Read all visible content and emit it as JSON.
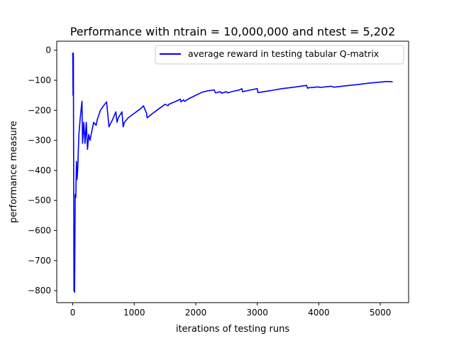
{
  "chart_data": {
    "type": "line",
    "title": "Performance with ntrain = 10,000,000 and ntest = 5,202",
    "xlabel": "iterations of testing runs",
    "ylabel": "performance measure",
    "xlim": [
      -260,
      5460
    ],
    "ylim": [
      -840,
      30
    ],
    "xticks": [
      0,
      1000,
      2000,
      3000,
      4000,
      5000
    ],
    "xtick_labels": [
      "0",
      "1000",
      "2000",
      "3000",
      "4000",
      "5000"
    ],
    "yticks": [
      0,
      -100,
      -200,
      -300,
      -400,
      -500,
      -600,
      -700,
      -800
    ],
    "ytick_labels": [
      "0",
      "−100",
      "−200",
      "−300",
      "−400",
      "−500",
      "−600",
      "−700",
      "−800"
    ],
    "grid": false,
    "legend_position": "top-right",
    "series": [
      {
        "name": "average reward in testing tabular Q-matrix",
        "color": "#0000ff",
        "x": [
          0,
          5,
          10,
          15,
          20,
          30,
          40,
          50,
          60,
          70,
          80,
          100,
          120,
          150,
          160,
          180,
          200,
          220,
          240,
          260,
          280,
          300,
          340,
          380,
          400,
          450,
          500,
          550,
          590,
          600,
          650,
          700,
          720,
          740,
          800,
          820,
          840,
          900,
          1000,
          1100,
          1150,
          1200,
          1210,
          1300,
          1400,
          1500,
          1550,
          1560,
          1700,
          1750,
          1760,
          1800,
          1820,
          1900,
          2000,
          2100,
          2200,
          2300,
          2320,
          2400,
          2420,
          2500,
          2520,
          2600,
          2700,
          2750,
          2760,
          2900,
          3000,
          3010,
          3200,
          3400,
          3600,
          3800,
          3820,
          3830,
          4000,
          4020,
          4100,
          4200,
          4250,
          4500,
          4600,
          4800,
          5000,
          5100,
          5202
        ],
        "y": [
          -8,
          -150,
          -10,
          -400,
          -800,
          -805,
          -480,
          -490,
          -370,
          -430,
          -400,
          -280,
          -230,
          -170,
          -310,
          -240,
          -310,
          -240,
          -330,
          -280,
          -300,
          -280,
          -240,
          -250,
          -230,
          -200,
          -185,
          -172,
          -255,
          -250,
          -230,
          -205,
          -240,
          -225,
          -205,
          -255,
          -240,
          -225,
          -210,
          -195,
          -185,
          -210,
          -225,
          -210,
          -195,
          -180,
          -185,
          -180,
          -168,
          -163,
          -172,
          -165,
          -170,
          -160,
          -150,
          -140,
          -135,
          -132,
          -142,
          -138,
          -143,
          -138,
          -142,
          -137,
          -133,
          -128,
          -138,
          -132,
          -128,
          -141,
          -135,
          -128,
          -123,
          -117,
          -127,
          -125,
          -122,
          -124,
          -122,
          -120,
          -123,
          -117,
          -115,
          -110,
          -106,
          -104,
          -105
        ]
      }
    ]
  }
}
